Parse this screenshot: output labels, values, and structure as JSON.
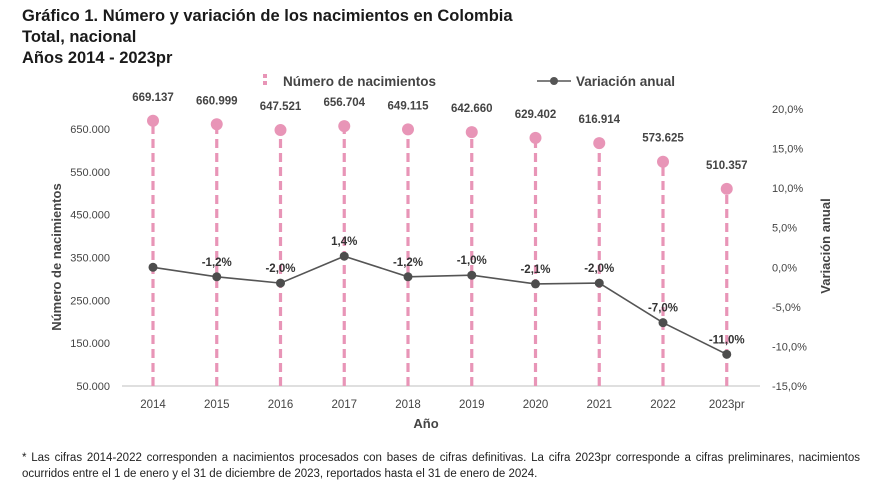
{
  "header": {
    "title": "Gráfico 1. Número y variación de los nacimientos en Colombia",
    "subtitle": "Total, nacional",
    "period": "Años 2014 - 2023pr"
  },
  "chart_data": {
    "type": "bar+line",
    "categories": [
      "2014",
      "2015",
      "2016",
      "2017",
      "2018",
      "2019",
      "2020",
      "2021",
      "2022",
      "2023pr"
    ],
    "series": [
      {
        "name": "Número de nacimientos",
        "axis": "left",
        "style": "lollipop-dashed",
        "values": [
          669137,
          660999,
          647521,
          656704,
          649115,
          642660,
          629402,
          616914,
          573625,
          510357
        ],
        "labels": [
          "669.137",
          "660.999",
          "647.521",
          "656.704",
          "649.115",
          "642.660",
          "629.402",
          "616.914",
          "573.625",
          "510.357"
        ],
        "color": "#e895b7"
      },
      {
        "name": "Variación anual",
        "axis": "right",
        "style": "line-markers",
        "values": [
          0,
          -1.2,
          -2.0,
          1.4,
          -1.2,
          -1.0,
          -2.1,
          -2.0,
          -7.0,
          -11.0
        ],
        "labels": [
          "",
          "-1,2%",
          "-2,0%",
          "1,4%",
          "-1,2%",
          "-1,0%",
          "-2,1%",
          "-2,0%",
          "-7,0%",
          "-11,0%"
        ],
        "color": "#555555"
      }
    ],
    "xlabel": "Año",
    "ylabel_left": "Número de nacimientos",
    "ylabel_right": "Variación anual",
    "ylim_left": [
      50000,
      700000
    ],
    "yticks_left": [
      50000,
      150000,
      250000,
      350000,
      450000,
      550000,
      650000
    ],
    "yticks_left_labels": [
      "50.000",
      "150.000",
      "250.000",
      "350.000",
      "450.000",
      "550.000",
      "650.000"
    ],
    "ylim_right": [
      -15,
      20
    ],
    "yticks_right": [
      -15,
      -10,
      -5,
      0,
      5,
      10,
      15,
      20
    ],
    "yticks_right_labels": [
      "-15,0%",
      "-10,0%",
      "-5,0%",
      "0,0%",
      "5,0%",
      "10,0%",
      "15,0%",
      "20,0%"
    ],
    "grid": false,
    "legend_position": "top-center"
  },
  "footnote": "* Las cifras 2014-2022 corresponden a nacimientos procesados con bases de cifras definitivas. La cifra 2023pr corresponde a cifras preliminares, nacimientos ocurridos entre el 1 de enero y el 31 de diciembre de 2023, reportados hasta el 31 de enero de 2024."
}
